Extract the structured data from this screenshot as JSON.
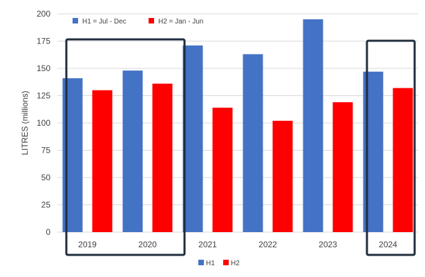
{
  "chart_data": {
    "type": "bar",
    "ylabel": "LITRES (millions)",
    "ylim": [
      0,
      200
    ],
    "yticks": [
      0,
      25,
      50,
      75,
      100,
      125,
      150,
      175,
      200
    ],
    "categories": [
      "2019",
      "2020",
      "2021",
      "2022",
      "2023",
      "2024"
    ],
    "series": [
      {
        "name": "H1",
        "color": "#4472C4",
        "values": [
          141,
          148,
          171,
          163,
          195,
          147
        ]
      },
      {
        "name": "H2",
        "color": "#FF0000",
        "values": [
          130,
          136,
          114,
          102,
          119,
          132
        ]
      }
    ],
    "grid": true,
    "annotation_legend": [
      {
        "label": "H1 = Jul - Dec",
        "color": "#4472C4"
      },
      {
        "label": "H2 = Jan - Jun",
        "color": "#FF0000"
      }
    ],
    "legend_position": "bottom",
    "highlight_boxes": [
      {
        "categories": [
          "2019",
          "2020"
        ],
        "color": "#1F2D3D"
      },
      {
        "categories": [
          "2024"
        ],
        "color": "#1F2D3D"
      }
    ]
  }
}
